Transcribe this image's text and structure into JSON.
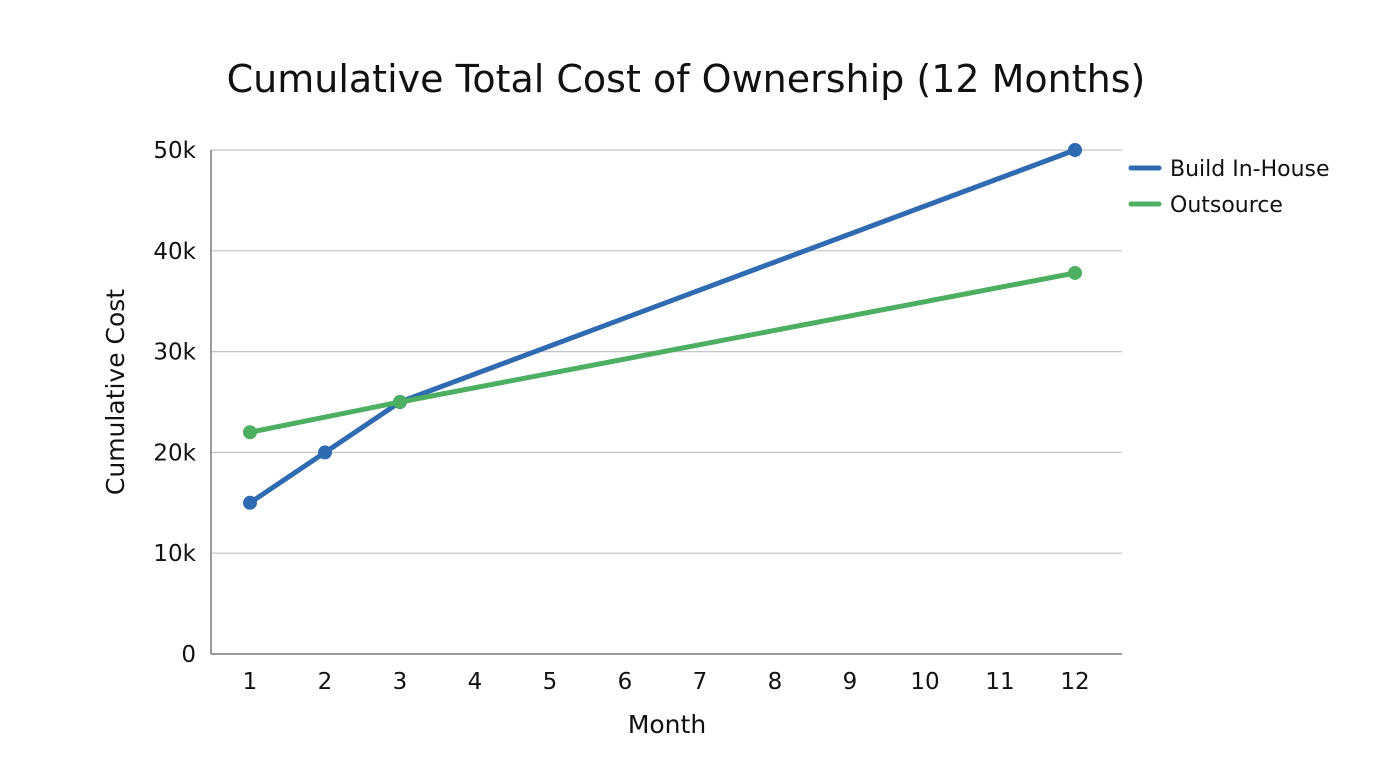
{
  "chart_data": {
    "type": "line",
    "title": "Cumulative Total Cost of Ownership (12 Months)",
    "xlabel": "Month",
    "ylabel": "Cumulative Cost",
    "x": [
      1,
      2,
      3,
      4,
      5,
      6,
      7,
      8,
      9,
      10,
      11,
      12
    ],
    "x_tick_labels": [
      "1",
      "2",
      "3",
      "4",
      "5",
      "6",
      "7",
      "8",
      "9",
      "10",
      "11",
      "12"
    ],
    "ylim": [
      0,
      50000
    ],
    "y_ticks": [
      0,
      10000,
      20000,
      30000,
      40000,
      50000
    ],
    "y_tick_labels": [
      "0",
      "10k",
      "20k",
      "30k",
      "40k",
      "50k"
    ],
    "grid": "horizontal",
    "legend_position": "top-right, outside plot",
    "series": [
      {
        "name": "Build In-House",
        "color": "#2e6bb0",
        "points": [
          {
            "x": 1,
            "y": 15000
          },
          {
            "x": 2,
            "y": 20000
          },
          {
            "x": 3,
            "y": 25000
          },
          {
            "x": 12,
            "y": 50000
          }
        ]
      },
      {
        "name": "Outsource",
        "color": "#4caf62",
        "points": [
          {
            "x": 1,
            "y": 22000
          },
          {
            "x": 3,
            "y": 25000
          },
          {
            "x": 12,
            "y": 37800
          }
        ]
      }
    ]
  }
}
